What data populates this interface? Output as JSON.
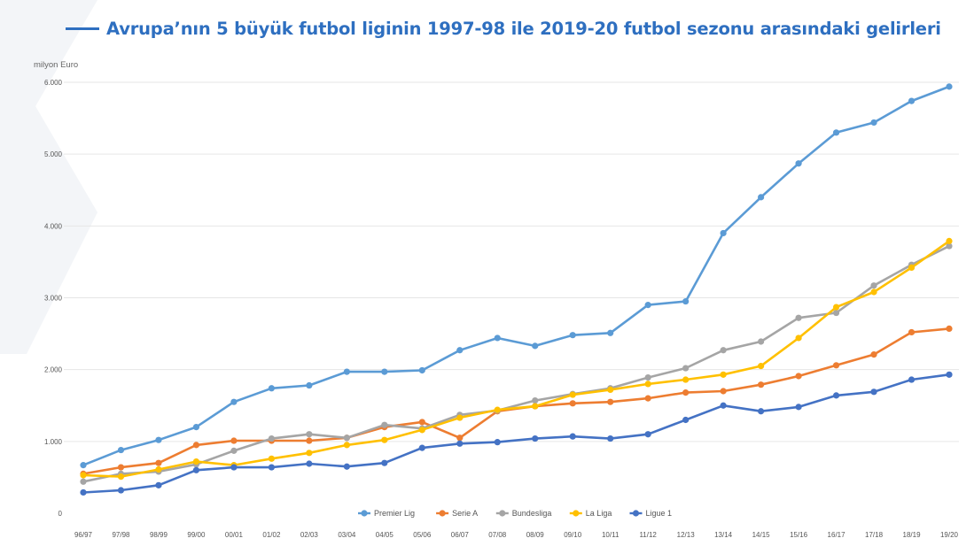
{
  "title": "Avrupa’nın 5 büyük futbol liginin 1997-98 ile 2019-20 futbol sezonu arasındaki gelirleri",
  "chart_data": {
    "type": "line",
    "title": "Avrupa’nın 5 büyük futbol liginin 1997-98 ile 2019-20 futbol sezonu arasındaki gelirleri",
    "ylabel": "milyon Euro",
    "xlabel": "",
    "ylim": [
      0,
      6000
    ],
    "yticks": [
      0,
      1000,
      2000,
      3000,
      4000,
      5000,
      6000
    ],
    "ytick_labels": [
      "0",
      "1.000",
      "2.000",
      "3.000",
      "4.000",
      "5.000",
      "6.000"
    ],
    "grid": "horizontal",
    "legend_position": "bottom",
    "categories": [
      "96/97",
      "97/98",
      "98/99",
      "99/00",
      "00/01",
      "01/02",
      "02/03",
      "03/04",
      "04/05",
      "05/06",
      "06/07",
      "07/08",
      "08/09",
      "09/10",
      "10/11",
      "11/12",
      "12/13",
      "13/14",
      "14/15",
      "15/16",
      "16/17",
      "17/18",
      "18/19",
      "19/20"
    ],
    "series": [
      {
        "name": "Premier Lig",
        "color": "#5b9bd5",
        "values": [
          670,
          880,
          1020,
          1200,
          1550,
          1740,
          1780,
          1970,
          1970,
          1990,
          2270,
          2440,
          2330,
          2480,
          2510,
          2900,
          2950,
          3900,
          4400,
          4870,
          5300,
          5440,
          5740,
          5940
        ]
      },
      {
        "name": "Serie A",
        "color": "#ed7d31",
        "values": [
          550,
          640,
          700,
          950,
          1010,
          1010,
          1010,
          1050,
          1200,
          1270,
          1050,
          1420,
          1490,
          1530,
          1550,
          1600,
          1680,
          1700,
          1790,
          1910,
          2060,
          2210,
          2520,
          2570
        ]
      },
      {
        "name": "Bundesliga",
        "color": "#a5a5a5",
        "values": [
          440,
          550,
          580,
          680,
          870,
          1040,
          1100,
          1050,
          1230,
          1180,
          1370,
          1430,
          1570,
          1660,
          1740,
          1890,
          2020,
          2270,
          2390,
          2720,
          2790,
          3170,
          3460,
          3720
        ]
      },
      {
        "name": "La Liga",
        "color": "#ffc000",
        "values": [
          530,
          510,
          610,
          720,
          670,
          760,
          840,
          950,
          1020,
          1160,
          1330,
          1440,
          1490,
          1650,
          1720,
          1800,
          1860,
          1930,
          2050,
          2440,
          2870,
          3080,
          3420,
          3790
        ]
      },
      {
        "name": "Ligue 1",
        "color": "#4472c4",
        "values": [
          290,
          320,
          390,
          600,
          640,
          640,
          690,
          650,
          700,
          910,
          970,
          990,
          1040,
          1070,
          1040,
          1100,
          1300,
          1500,
          1420,
          1480,
          1640,
          1690,
          1860,
          1930
        ]
      }
    ]
  }
}
